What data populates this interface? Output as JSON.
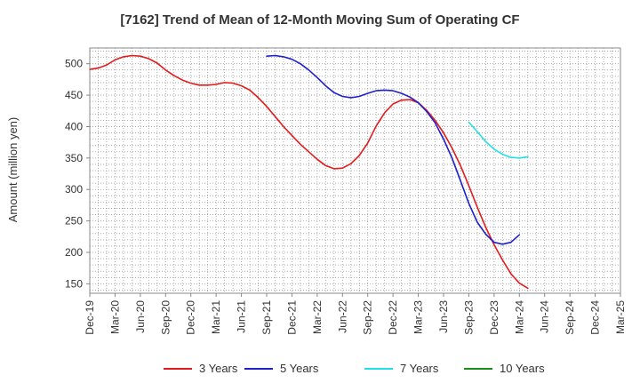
{
  "chart_data": {
    "type": "line",
    "title": "[7162]  Trend of Mean of 12-Month Moving Sum of Operating CF",
    "xlabel": "",
    "ylabel": "Amount (million yen)",
    "ylim": [
      135,
      525
    ],
    "yticks": [
      150,
      200,
      250,
      300,
      350,
      400,
      450,
      500
    ],
    "grid": true,
    "legend_position": "bottom",
    "x_tick_labels": [
      "Dec-19",
      "Mar-20",
      "Jun-20",
      "Sep-20",
      "Dec-20",
      "Mar-21",
      "Jun-21",
      "Sep-21",
      "Dec-21",
      "Mar-22",
      "Jun-22",
      "Sep-22",
      "Dec-22",
      "Mar-23",
      "Jun-23",
      "Sep-23",
      "Dec-23",
      "Mar-24",
      "Jun-24",
      "Sep-24",
      "Dec-24",
      "Mar-25"
    ],
    "series": [
      {
        "name": "3 Years",
        "color": "#e31a1c",
        "start_month_index": 0,
        "values": [
          491,
          493,
          498,
          506,
          511,
          513,
          512,
          508,
          501,
          490,
          481,
          474,
          469,
          466,
          466,
          467,
          470,
          469,
          465,
          458,
          446,
          432,
          416,
          400,
          386,
          372,
          360,
          348,
          338,
          333,
          334,
          341,
          354,
          374,
          401,
          422,
          436,
          442,
          443,
          438,
          426,
          410,
          390,
          366,
          338,
          306,
          272,
          240,
          212,
          188,
          166,
          151,
          143
        ]
      },
      {
        "name": "5 Years",
        "color": "#1f1fcc",
        "start_month_index": 21,
        "values": [
          512,
          513,
          511,
          507,
          500,
          490,
          478,
          465,
          454,
          448,
          446,
          448,
          453,
          457,
          458,
          457,
          453,
          447,
          438,
          424,
          406,
          380,
          350,
          314,
          278,
          248,
          229,
          216,
          213,
          216,
          228
        ]
      },
      {
        "name": "7 Years",
        "color": "#22e0e8",
        "start_month_index": 45,
        "values": [
          407,
          392,
          376,
          364,
          356,
          351,
          350,
          352
        ]
      },
      {
        "name": "10 Years",
        "color": "#1a8c1a",
        "start_month_index": 0,
        "values": []
      }
    ]
  }
}
